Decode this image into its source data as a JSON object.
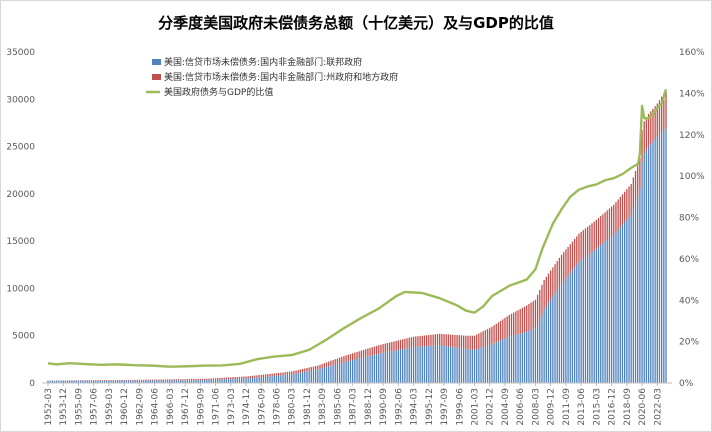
{
  "chart_data": {
    "type": "bar+line",
    "title": "分季度美国政府未偿债务总额（十亿美元）及与GDP的比值",
    "y_left": {
      "min": 0,
      "max": 35000,
      "ticks": [
        0,
        5000,
        10000,
        15000,
        20000,
        25000,
        30000,
        35000
      ],
      "tick_labels": [
        "0",
        "5000",
        "10000",
        "15000",
        "20000",
        "25000",
        "30000",
        "35000"
      ]
    },
    "y_right": {
      "min": 0,
      "max": 160,
      "unit": "%",
      "ticks": [
        0,
        20,
        40,
        60,
        80,
        100,
        120,
        140,
        160
      ],
      "tick_labels": [
        "0%",
        "20%",
        "40%",
        "60%",
        "80%",
        "100%",
        "120%",
        "140%",
        "160%"
      ]
    },
    "x_labels": [
      "1952-03",
      "1953-12",
      "1955-09",
      "1957-06",
      "1959-03",
      "1960-12",
      "1962-09",
      "1964-06",
      "1966-03",
      "1967-12",
      "1969-09",
      "1971-06",
      "1973-03",
      "1974-12",
      "1976-09",
      "1978-06",
      "1980-03",
      "1981-12",
      "1983-09",
      "1985-06",
      "1987-03",
      "1988-12",
      "1990-09",
      "1992-06",
      "1994-03",
      "1995-12",
      "1997-09",
      "1999-06",
      "2001-03",
      "2002-12",
      "2004-09",
      "2006-06",
      "2008-03",
      "2009-12",
      "2011-09",
      "2013-06",
      "2015-03",
      "2016-12",
      "2018-09",
      "2020-06",
      "2022-03"
    ],
    "x_range": [
      "1952-03",
      "2023-03"
    ],
    "series": [
      {
        "name": "美国:信贷市场未偿债务:国内非金融部门:联邦政府",
        "kind": "bar-stack",
        "color": "#4f81bd",
        "points": [
          [
            1952.0,
            230
          ],
          [
            1955.0,
            240
          ],
          [
            1960.0,
            245
          ],
          [
            1965.0,
            265
          ],
          [
            1970.0,
            300
          ],
          [
            1975.0,
            480
          ],
          [
            1980.0,
            920
          ],
          [
            1983.0,
            1450
          ],
          [
            1986.0,
            2200
          ],
          [
            1990.0,
            3100
          ],
          [
            1994.0,
            3800
          ],
          [
            1997.0,
            4000
          ],
          [
            2000.0,
            3600
          ],
          [
            2001.0,
            3500
          ],
          [
            2003.0,
            4100
          ],
          [
            2005.0,
            4900
          ],
          [
            2007.0,
            5400
          ],
          [
            2008.0,
            5800
          ],
          [
            2009.0,
            7800
          ],
          [
            2011.0,
            10500
          ],
          [
            2013.0,
            12800
          ],
          [
            2015.0,
            14200
          ],
          [
            2017.0,
            15700
          ],
          [
            2019.0,
            17800
          ],
          [
            2020.0,
            20500
          ],
          [
            2020.3,
            24000
          ],
          [
            2021.0,
            25000
          ],
          [
            2022.0,
            26000
          ],
          [
            2023.0,
            27000
          ]
        ]
      },
      {
        "name": "美国:信贷市场未偿债务:国内非金融部门:州政府和地方政府",
        "kind": "bar-stack",
        "color": "#c0504d",
        "points": [
          [
            1952.0,
            30
          ],
          [
            1955.0,
            50
          ],
          [
            1960.0,
            70
          ],
          [
            1965.0,
            100
          ],
          [
            1970.0,
            145
          ],
          [
            1975.0,
            230
          ],
          [
            1980.0,
            300
          ],
          [
            1983.0,
            390
          ],
          [
            1986.0,
            650
          ],
          [
            1990.0,
            900
          ],
          [
            1994.0,
            1100
          ],
          [
            1997.0,
            1200
          ],
          [
            2000.0,
            1400
          ],
          [
            2001.0,
            1500
          ],
          [
            2003.0,
            1850
          ],
          [
            2005.0,
            2300
          ],
          [
            2007.0,
            2800
          ],
          [
            2008.0,
            3000
          ],
          [
            2009.0,
            3100
          ],
          [
            2011.0,
            3050
          ],
          [
            2013.0,
            3000
          ],
          [
            2015.0,
            3050
          ],
          [
            2017.0,
            3150
          ],
          [
            2019.0,
            3250
          ],
          [
            2020.0,
            3300
          ],
          [
            2020.3,
            3350
          ],
          [
            2021.0,
            3450
          ],
          [
            2022.0,
            3550
          ],
          [
            2023.0,
            4000
          ]
        ]
      },
      {
        "name": "美国政府债务与GDP的比值",
        "kind": "line",
        "axis": "right",
        "color": "#9bbb59",
        "points": [
          [
            1952.0,
            9.5
          ],
          [
            1953.0,
            9.0
          ],
          [
            1954.5,
            9.6
          ],
          [
            1956.0,
            9.2
          ],
          [
            1958.0,
            8.8
          ],
          [
            1960.0,
            9.0
          ],
          [
            1962.0,
            8.6
          ],
          [
            1964.0,
            8.4
          ],
          [
            1966.0,
            7.9
          ],
          [
            1968.0,
            8.1
          ],
          [
            1970.0,
            8.4
          ],
          [
            1972.0,
            8.5
          ],
          [
            1974.0,
            9.2
          ],
          [
            1976.0,
            11.5
          ],
          [
            1978.0,
            12.8
          ],
          [
            1980.0,
            13.5
          ],
          [
            1982.0,
            16.0
          ],
          [
            1984.0,
            21.0
          ],
          [
            1986.0,
            26.5
          ],
          [
            1988.0,
            31.5
          ],
          [
            1990.0,
            36.0
          ],
          [
            1992.0,
            42.0
          ],
          [
            1993.0,
            44.0
          ],
          [
            1995.0,
            43.5
          ],
          [
            1997.0,
            41.0
          ],
          [
            1999.0,
            37.5
          ],
          [
            2000.0,
            35.0
          ],
          [
            2001.0,
            34.0
          ],
          [
            2002.0,
            37.0
          ],
          [
            2003.0,
            42.0
          ],
          [
            2005.0,
            47.0
          ],
          [
            2007.0,
            50.0
          ],
          [
            2008.0,
            55.0
          ],
          [
            2008.8,
            65.0
          ],
          [
            2010.0,
            77.0
          ],
          [
            2011.0,
            84.0
          ],
          [
            2012.0,
            90.0
          ],
          [
            2013.0,
            93.5
          ],
          [
            2014.0,
            95.0
          ],
          [
            2015.0,
            96.0
          ],
          [
            2016.0,
            98.0
          ],
          [
            2017.0,
            99.0
          ],
          [
            2018.0,
            101.0
          ],
          [
            2019.0,
            104.0
          ],
          [
            2019.8,
            106.0
          ],
          [
            2020.0,
            111.0
          ],
          [
            2020.25,
            134.0
          ],
          [
            2020.5,
            128.0
          ],
          [
            2021.0,
            128.0
          ],
          [
            2021.5,
            130.0
          ],
          [
            2022.0,
            133.0
          ],
          [
            2022.5,
            135.0
          ],
          [
            2023.0,
            142.0
          ]
        ]
      }
    ],
    "legend_position": "top-left",
    "grid": false
  }
}
